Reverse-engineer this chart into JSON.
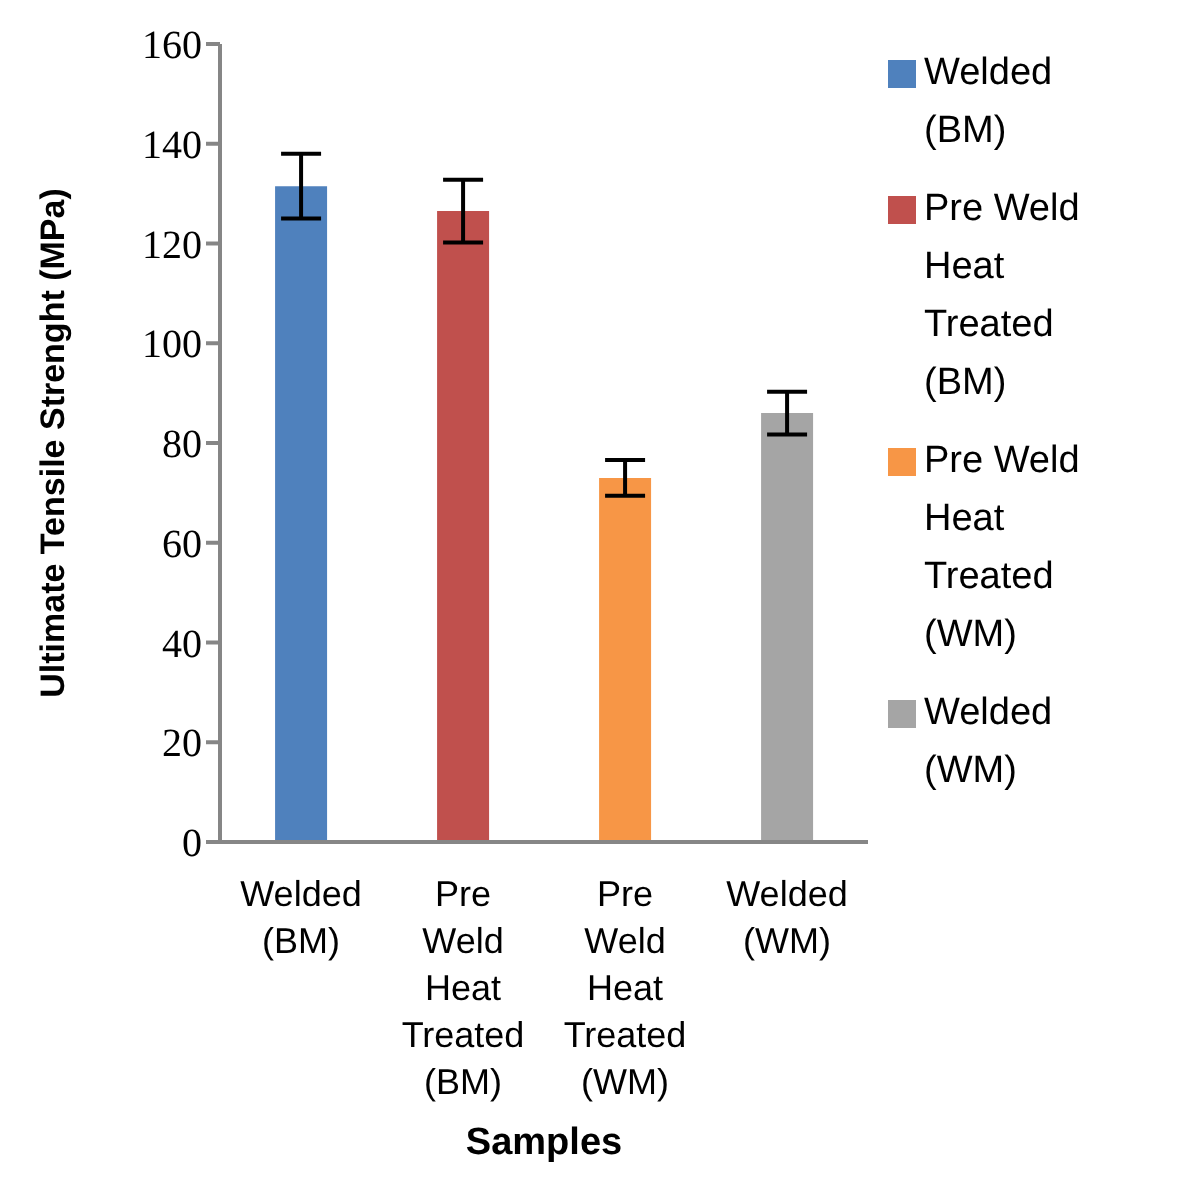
{
  "chart_data": {
    "type": "bar",
    "xlabel": "Samples",
    "ylabel": "Ultimate Tensile Strenght (MPa)",
    "categories": [
      "Welded (BM)",
      "Pre Weld Heat Treated (BM)",
      "Pre Weld Heat Treated (WM)",
      "Welded (WM)"
    ],
    "series": [
      {
        "name": "Welded (BM)",
        "color": "#4f81bd",
        "values": [
          131.5,
          null,
          null,
          null
        ],
        "errors": [
          6.5,
          null,
          null,
          null
        ]
      },
      {
        "name": "Pre Weld Heat Treated (BM)",
        "color": "#c0504d",
        "values": [
          null,
          126.5,
          null,
          null
        ],
        "errors": [
          null,
          6.3,
          null,
          null
        ]
      },
      {
        "name": "Pre Weld Heat Treated (WM)",
        "color": "#f79646",
        "values": [
          null,
          null,
          73,
          null
        ],
        "errors": [
          null,
          null,
          3.6,
          null
        ]
      },
      {
        "name": "Welded (WM)",
        "color": "#a5a5a5",
        "values": [
          null,
          null,
          null,
          86
        ],
        "errors": [
          null,
          null,
          null,
          4.3
        ]
      }
    ],
    "stacked": true,
    "ylim": [
      0,
      160
    ],
    "yticks": [
      0,
      20,
      40,
      60,
      80,
      100,
      120,
      140,
      160
    ],
    "legend": "right"
  }
}
